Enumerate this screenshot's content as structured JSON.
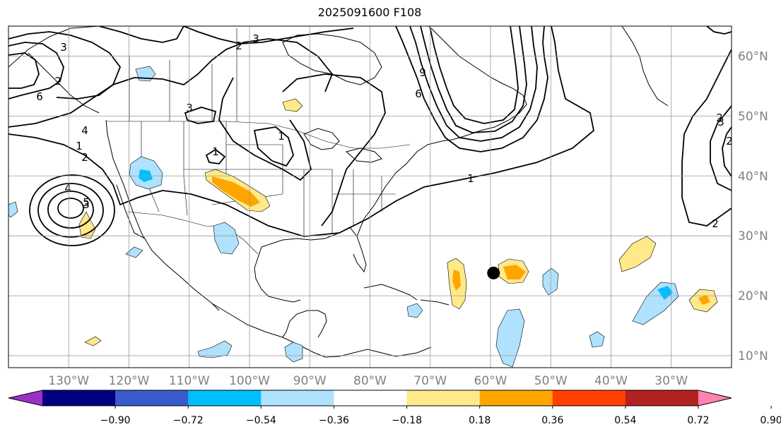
{
  "title": "2025091600 F108",
  "map": {
    "lon_range": [
      -140,
      -20
    ],
    "lat_range": [
      8,
      65
    ],
    "lon_ticks": [
      {
        "value": -130,
        "label": "130°W"
      },
      {
        "value": -120,
        "label": "120°W"
      },
      {
        "value": -110,
        "label": "110°W"
      },
      {
        "value": -100,
        "label": "100°W"
      },
      {
        "value": -90,
        "label": "90°W"
      },
      {
        "value": -80,
        "label": "80°W"
      },
      {
        "value": -70,
        "label": "70°W"
      },
      {
        "value": -60,
        "label": "60°W"
      },
      {
        "value": -50,
        "label": "50°W"
      },
      {
        "value": -40,
        "label": "40°W"
      },
      {
        "value": -30,
        "label": "30°W"
      }
    ],
    "lat_ticks": [
      {
        "value": 10,
        "label": "10°N"
      },
      {
        "value": 20,
        "label": "20°N"
      },
      {
        "value": 30,
        "label": "30°N"
      },
      {
        "value": 40,
        "label": "40°N"
      },
      {
        "value": 50,
        "label": "50°N"
      },
      {
        "value": 60,
        "label": "60°N"
      }
    ],
    "tick_label_color": "#808080",
    "marker": {
      "lon": -59.5,
      "lat": 23.8
    }
  },
  "colorbar": {
    "tick_labels": [
      "−0.90",
      "−0.72",
      "−0.54",
      "−0.36",
      "−0.18",
      "0.18",
      "0.36",
      "0.54",
      "0.72",
      "0.90"
    ],
    "colors": [
      "#9b30c8",
      "#000080",
      "#3a5bcc",
      "#00bfff",
      "#b0e2ff",
      "#ffffff",
      "#ffe98a",
      "#ffa500",
      "#ff4000",
      "#b22222",
      "#ff85b0"
    ]
  },
  "contour_labels": [
    "3",
    "3",
    "2",
    "3",
    "6",
    "2",
    "1",
    "2",
    "3",
    "4",
    "5",
    "1",
    "2",
    "2",
    "1",
    "6",
    "9",
    "1",
    "2",
    "3",
    "4"
  ]
}
